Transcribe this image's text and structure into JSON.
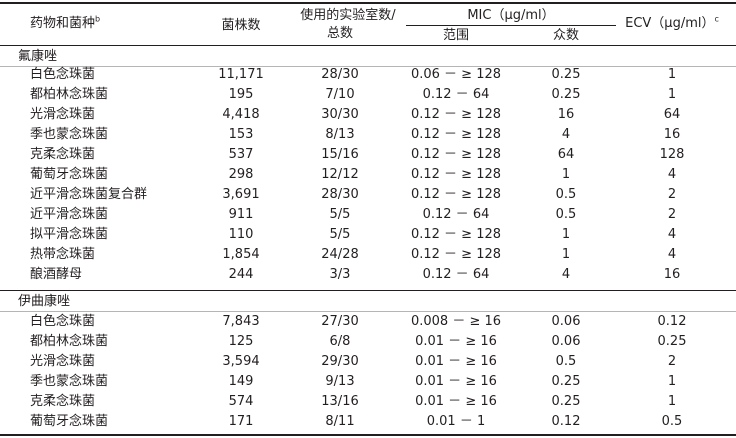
{
  "header": {
    "col1": "药物和菌种",
    "col1_sup": "b",
    "col2": "菌株数",
    "col3_line1": "使用的实验室数/",
    "col3_line2": "总数",
    "mic": "MIC（μg/ml）",
    "range": "范围",
    "mode": "众数",
    "ecv": "ECV（μg/ml）",
    "ecv_sup": "c"
  },
  "sections": [
    {
      "name": "氟康唑",
      "rows": [
        {
          "species": "白色念珠菌",
          "strains": "11,171",
          "labs": "28/30",
          "range": "0.06 － ≥ 128",
          "mode": "0.25",
          "ecv": "1"
        },
        {
          "species": "都柏林念珠菌",
          "strains": "195",
          "labs": "7/10",
          "range": "0.12 － 64",
          "mode": "0.25",
          "ecv": "1"
        },
        {
          "species": "光滑念珠菌",
          "strains": "4,418",
          "labs": "30/30",
          "range": "0.12 － ≥ 128",
          "mode": "16",
          "ecv": "64"
        },
        {
          "species": "季也蒙念珠菌",
          "strains": "153",
          "labs": "8/13",
          "range": "0.12 － ≥ 128",
          "mode": "4",
          "ecv": "16"
        },
        {
          "species": "克柔念珠菌",
          "strains": "537",
          "labs": "15/16",
          "range": "0.12 － ≥ 128",
          "mode": "64",
          "ecv": "128"
        },
        {
          "species": "葡萄牙念珠菌",
          "strains": "298",
          "labs": "12/12",
          "range": "0.12 － ≥ 128",
          "mode": "1",
          "ecv": "4"
        },
        {
          "species": "近平滑念珠菌复合群",
          "strains": "3,691",
          "labs": "28/30",
          "range": "0.12 － ≥ 128",
          "mode": "0.5",
          "ecv": "2"
        },
        {
          "species": "近平滑念珠菌",
          "strains": "911",
          "labs": "5/5",
          "range": "0.12 － 64",
          "mode": "0.5",
          "ecv": "2"
        },
        {
          "species": "拟平滑念珠菌",
          "strains": "110",
          "labs": "5/5",
          "range": "0.12 － ≥ 128",
          "mode": "1",
          "ecv": "4"
        },
        {
          "species": "热带念珠菌",
          "strains": "1,854",
          "labs": "24/28",
          "range": "0.12 － ≥ 128",
          "mode": "1",
          "ecv": "4"
        },
        {
          "species": "酿酒酵母",
          "strains": "244",
          "labs": "3/3",
          "range": "0.12 － 64",
          "mode": "4",
          "ecv": "16"
        }
      ]
    },
    {
      "name": "伊曲康唑",
      "rows": [
        {
          "species": "白色念珠菌",
          "strains": "7,843",
          "labs": "27/30",
          "range": "0.008 － ≥ 16",
          "mode": "0.06",
          "ecv": "0.12"
        },
        {
          "species": "都柏林念珠菌",
          "strains": "125",
          "labs": "6/8",
          "range": "0.01 － ≥ 16",
          "mode": "0.06",
          "ecv": "0.25"
        },
        {
          "species": "光滑念珠菌",
          "strains": "3,594",
          "labs": "29/30",
          "range": "0.01 － ≥ 16",
          "mode": "0.5",
          "ecv": "2"
        },
        {
          "species": "季也蒙念珠菌",
          "strains": "149",
          "labs": "9/13",
          "range": "0.01 － ≥ 16",
          "mode": "0.25",
          "ecv": "1"
        },
        {
          "species": "克柔念珠菌",
          "strains": "574",
          "labs": "13/16",
          "range": "0.01 － ≥ 16",
          "mode": "0.25",
          "ecv": "1"
        },
        {
          "species": "葡萄牙念珠菌",
          "strains": "171",
          "labs": "8/11",
          "range": "0.01 － 1",
          "mode": "0.12",
          "ecv": "0.5"
        }
      ]
    }
  ]
}
